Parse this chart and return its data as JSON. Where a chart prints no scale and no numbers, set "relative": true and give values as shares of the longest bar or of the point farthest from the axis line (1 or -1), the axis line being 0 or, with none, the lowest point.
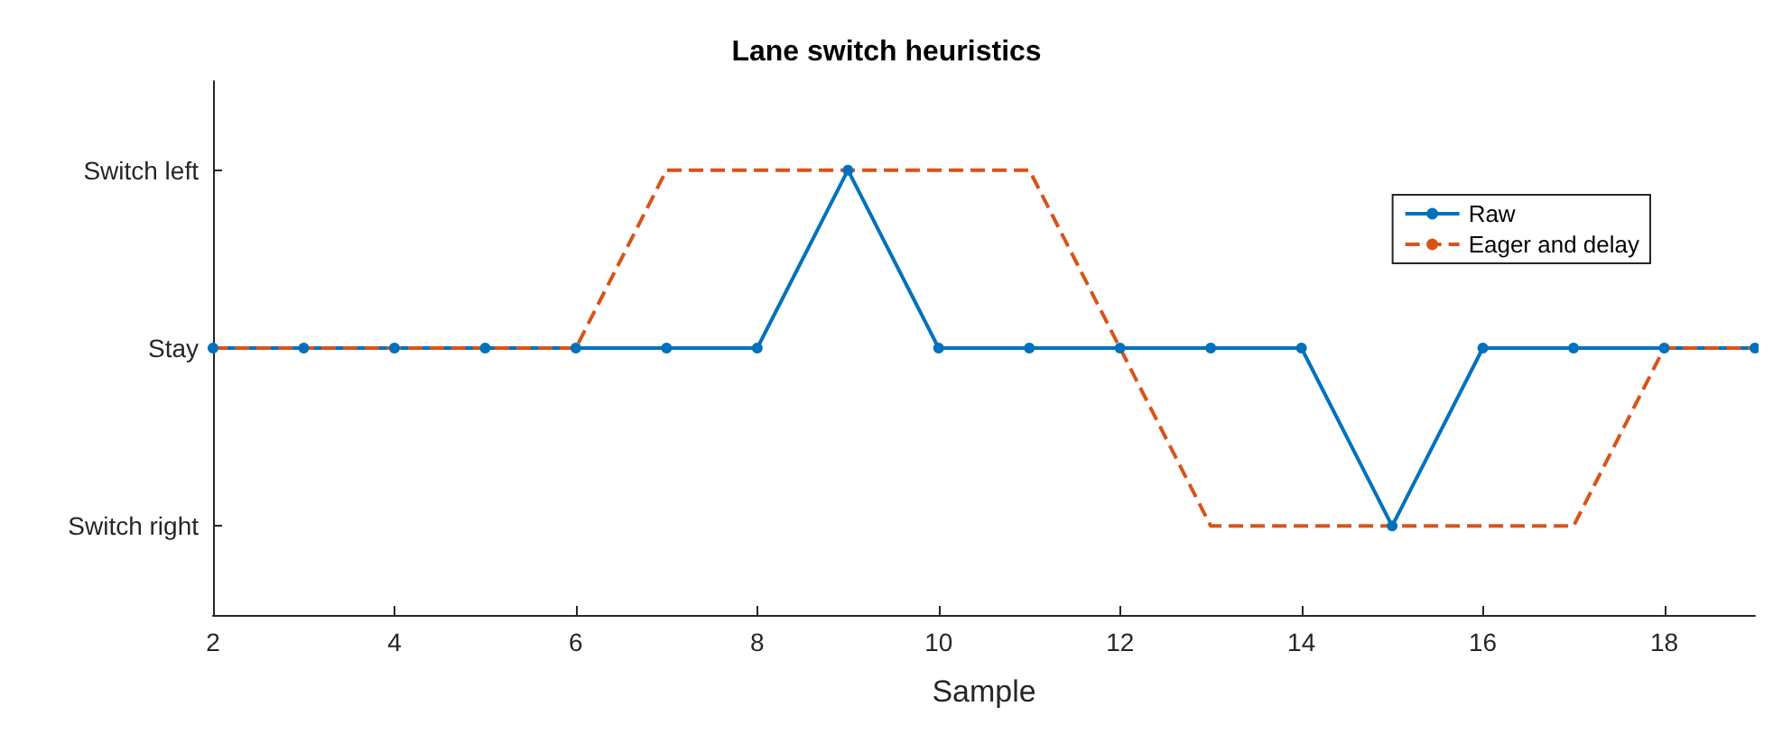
{
  "chart_data": {
    "type": "line",
    "title": "Lane switch heuristics",
    "xlabel": "Sample",
    "x": [
      2,
      3,
      4,
      5,
      6,
      7,
      8,
      9,
      10,
      11,
      12,
      13,
      14,
      15,
      16,
      17,
      18,
      19
    ],
    "series": [
      {
        "name": "Raw",
        "color": "#0072bd",
        "marker": "circle",
        "line_style": "solid",
        "values": [
          0.6,
          0.6,
          0.6,
          0.6,
          0.6,
          0.6,
          0.6,
          1,
          0.6,
          0.6,
          0.6,
          0.6,
          0.6,
          0.2,
          0.6,
          0.6,
          0.6,
          0.6
        ]
      },
      {
        "name": "Eager and delay",
        "color": "#d95319",
        "marker": "none",
        "line_style": "dashed",
        "values": [
          0.6,
          0.6,
          0.6,
          0.6,
          0.6,
          1,
          1,
          1,
          1,
          1,
          0.6,
          0.2,
          0.2,
          0.2,
          0.2,
          0.2,
          0.6,
          0.6
        ]
      }
    ],
    "relative": true,
    "y_categories": [
      "Switch left",
      "Stay",
      "Switch right"
    ],
    "xlim": [
      2,
      19
    ],
    "xticks": [
      2,
      4,
      6,
      8,
      10,
      12,
      14,
      16,
      18
    ],
    "grid": false,
    "legend": "top right"
  }
}
